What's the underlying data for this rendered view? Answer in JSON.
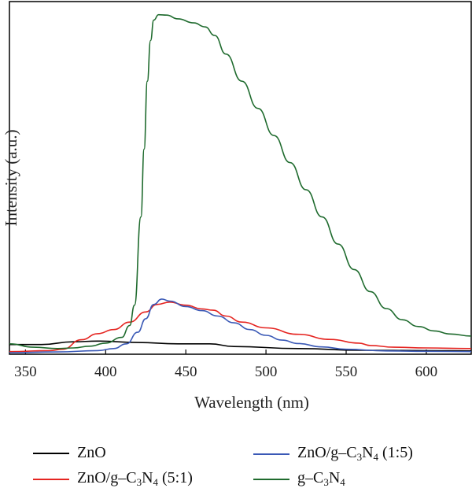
{
  "chart_data": {
    "type": "line",
    "xlabel": "Wavelength (nm)",
    "ylabel": "Intensity (a.u.)",
    "xlim": [
      340,
      628
    ],
    "ylim": [
      0,
      100
    ],
    "x_ticks": [
      350,
      400,
      450,
      500,
      550,
      600
    ],
    "y_ticks": [],
    "grid": false,
    "legend_position": "bottom",
    "series": [
      {
        "name": "ZnO",
        "color": "#000000",
        "points": [
          [
            340,
            2.4
          ],
          [
            360,
            2.4
          ],
          [
            380,
            3.2
          ],
          [
            395,
            3.4
          ],
          [
            420,
            3.0
          ],
          [
            445,
            2.6
          ],
          [
            465,
            2.6
          ],
          [
            480,
            1.8
          ],
          [
            520,
            1.2
          ],
          [
            560,
            0.7
          ],
          [
            600,
            0.6
          ],
          [
            628,
            0.5
          ]
        ]
      },
      {
        "name": "ZnO/g-C3N4 (5:1)",
        "color": "#e52521",
        "points": [
          [
            340,
            0.3
          ],
          [
            365,
            0.6
          ],
          [
            373,
            1.0
          ],
          [
            385,
            3.8
          ],
          [
            395,
            5.6
          ],
          [
            405,
            6.8
          ],
          [
            415,
            9.0
          ],
          [
            425,
            12.0
          ],
          [
            432,
            14.2
          ],
          [
            440,
            14.9
          ],
          [
            450,
            14.0
          ],
          [
            460,
            12.9
          ],
          [
            467,
            12.5
          ],
          [
            475,
            10.8
          ],
          [
            485,
            9.0
          ],
          [
            500,
            7.3
          ],
          [
            520,
            5.4
          ],
          [
            540,
            3.9
          ],
          [
            558,
            2.8
          ],
          [
            565,
            2.1
          ],
          [
            580,
            1.6
          ],
          [
            600,
            1.4
          ],
          [
            628,
            1.2
          ]
        ]
      },
      {
        "name": "ZnO/g-C3N4 (1:5)",
        "color": "#3a59b6",
        "points": [
          [
            340,
            0.0
          ],
          [
            370,
            0.2
          ],
          [
            395,
            0.6
          ],
          [
            405,
            1.2
          ],
          [
            413,
            2.6
          ],
          [
            420,
            6.0
          ],
          [
            425,
            10.0
          ],
          [
            430,
            14.2
          ],
          [
            435,
            15.8
          ],
          [
            440,
            15.2
          ],
          [
            450,
            13.6
          ],
          [
            460,
            12.4
          ],
          [
            470,
            10.8
          ],
          [
            480,
            8.8
          ],
          [
            490,
            6.8
          ],
          [
            500,
            5.1
          ],
          [
            510,
            3.7
          ],
          [
            520,
            2.7
          ],
          [
            535,
            1.7
          ],
          [
            550,
            1.0
          ],
          [
            575,
            0.5
          ],
          [
            600,
            0.4
          ],
          [
            628,
            0.3
          ]
        ]
      },
      {
        "name": "g-C3N4",
        "color": "#1f6b2e",
        "points": [
          [
            340,
            2.6
          ],
          [
            355,
            1.6
          ],
          [
            370,
            1.2
          ],
          [
            380,
            1.4
          ],
          [
            390,
            1.9
          ],
          [
            400,
            2.8
          ],
          [
            410,
            4.5
          ],
          [
            415,
            8.0
          ],
          [
            418,
            14.0
          ],
          [
            422,
            40.0
          ],
          [
            424,
            60.0
          ],
          [
            426,
            80.0
          ],
          [
            428,
            92.0
          ],
          [
            430,
            98.0
          ],
          [
            433,
            99.6
          ],
          [
            438,
            99.5
          ],
          [
            445,
            98.4
          ],
          [
            455,
            97.2
          ],
          [
            462,
            96.0
          ],
          [
            468,
            93.5
          ],
          [
            475,
            88.0
          ],
          [
            485,
            80.0
          ],
          [
            495,
            72.0
          ],
          [
            505,
            64.0
          ],
          [
            515,
            56.0
          ],
          [
            525,
            48.0
          ],
          [
            535,
            40.0
          ],
          [
            545,
            32.0
          ],
          [
            555,
            24.5
          ],
          [
            565,
            18.0
          ],
          [
            575,
            13.0
          ],
          [
            585,
            9.7
          ],
          [
            595,
            7.7
          ],
          [
            605,
            6.4
          ],
          [
            615,
            5.5
          ],
          [
            628,
            4.9
          ]
        ]
      }
    ]
  },
  "legend": {
    "zno": "ZnO",
    "zno_gcn_51_prefix": "ZnO/g–C",
    "zno_gcn_51_suffix": " (5:1)",
    "zno_gcn_15_prefix": "ZnO/g–C",
    "zno_gcn_15_suffix": " (1:5)",
    "gcn_prefix": "g–C",
    "sub_3": "3",
    "sub_4": "4",
    "n_letter": "N"
  }
}
